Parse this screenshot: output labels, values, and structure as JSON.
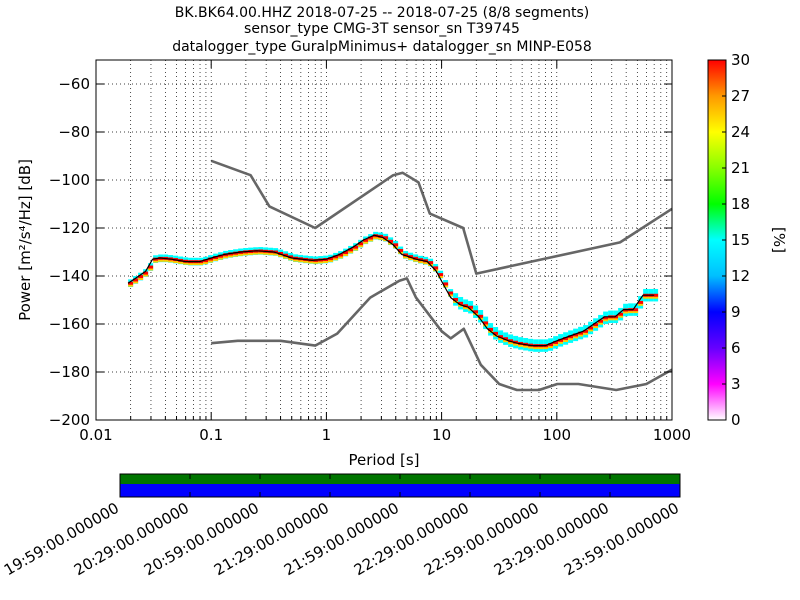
{
  "title_lines": [
    "BK.BK64.00.HHZ   2018-07-25 -- 2018-07-25  (8/8 segments)",
    "sensor_type CMG-3T sensor_sn T39745",
    "datalogger_type GuralpMinimus+ datalogger_sn MINP-E058"
  ],
  "chart_data": {
    "type": "heatmap",
    "xlabel": "Period [s]",
    "ylabel": "Power [m²/s⁴/Hz] [dB]",
    "x_scale": "log",
    "xlim": [
      0.01,
      1000
    ],
    "ylim": [
      -200,
      -50
    ],
    "x_ticks": [
      0.01,
      0.1,
      1,
      10,
      100,
      1000
    ],
    "x_tick_labels": [
      "0.01",
      "0.1",
      "1",
      "10",
      "100",
      "1000"
    ],
    "y_ticks": [
      -200,
      -180,
      -160,
      -140,
      -120,
      -100,
      -80,
      -60
    ],
    "y_tick_labels": [
      "−200",
      "−180",
      "−160",
      "−140",
      "−120",
      "−100",
      "−80",
      "−60"
    ],
    "grid": "dotted, at log subdivisions",
    "colorbar": {
      "label": "[%]",
      "range": [
        0,
        30
      ],
      "ticks": [
        "0",
        "3",
        "6",
        "9",
        "12",
        "15",
        "18",
        "21",
        "24",
        "27",
        "30"
      ]
    },
    "series": [
      {
        "role": "mode",
        "color": "#000000",
        "points": [
          [
            0.019,
            -143
          ],
          [
            0.022,
            -141
          ],
          [
            0.027,
            -138
          ],
          [
            0.031,
            -133
          ],
          [
            0.036,
            -132.5
          ],
          [
            0.045,
            -133
          ],
          [
            0.06,
            -134
          ],
          [
            0.08,
            -134
          ],
          [
            0.1,
            -132.5
          ],
          [
            0.13,
            -131
          ],
          [
            0.18,
            -130
          ],
          [
            0.25,
            -129.5
          ],
          [
            0.35,
            -130
          ],
          [
            0.5,
            -132.5
          ],
          [
            0.75,
            -133.5
          ],
          [
            1.0,
            -133
          ],
          [
            1.3,
            -131
          ],
          [
            1.7,
            -128
          ],
          [
            2.1,
            -125
          ],
          [
            2.6,
            -123
          ],
          [
            3.1,
            -124
          ],
          [
            3.8,
            -127
          ],
          [
            4.5,
            -131
          ],
          [
            6,
            -133
          ],
          [
            7.5,
            -134
          ],
          [
            9,
            -138
          ],
          [
            10.5,
            -144
          ],
          [
            12,
            -149
          ],
          [
            14.5,
            -152
          ],
          [
            17,
            -153
          ],
          [
            21,
            -157
          ],
          [
            25,
            -162
          ],
          [
            30,
            -165
          ],
          [
            38,
            -167
          ],
          [
            45,
            -168
          ],
          [
            60,
            -169
          ],
          [
            80,
            -169
          ],
          [
            100,
            -167
          ],
          [
            130,
            -165
          ],
          [
            170,
            -163
          ],
          [
            210,
            -160
          ],
          [
            260,
            -157
          ],
          [
            320,
            -157
          ],
          [
            380,
            -154
          ],
          [
            460,
            -154
          ],
          [
            560,
            -148
          ],
          [
            700,
            -148
          ]
        ]
      },
      {
        "role": "NHNM",
        "color": "#666666",
        "points": [
          [
            0.1,
            -92
          ],
          [
            0.22,
            -98
          ],
          [
            0.32,
            -111
          ],
          [
            0.8,
            -120
          ],
          [
            3.8,
            -98
          ],
          [
            4.6,
            -97
          ],
          [
            6.3,
            -101
          ],
          [
            7.9,
            -114
          ],
          [
            15.4,
            -120
          ],
          [
            20,
            -139
          ],
          [
            354,
            -126
          ],
          [
            1000,
            -112
          ]
        ]
      },
      {
        "role": "NLNM",
        "color": "#666666",
        "points": [
          [
            0.1,
            -168
          ],
          [
            0.17,
            -167
          ],
          [
            0.4,
            -167
          ],
          [
            0.8,
            -169
          ],
          [
            1.24,
            -164
          ],
          [
            2.4,
            -149
          ],
          [
            4.3,
            -142
          ],
          [
            5,
            -141
          ],
          [
            6,
            -149
          ],
          [
            10,
            -163
          ],
          [
            12,
            -166
          ],
          [
            15.6,
            -162
          ],
          [
            21.9,
            -177
          ],
          [
            31.6,
            -185
          ],
          [
            45,
            -187.5
          ],
          [
            70,
            -187.5
          ],
          [
            101,
            -185
          ],
          [
            154,
            -185
          ],
          [
            328,
            -187.5
          ],
          [
            600,
            -185
          ],
          [
            1000,
            -179
          ]
        ]
      }
    ]
  },
  "timeline": {
    "segments": 8,
    "labels": [
      "19:59:00.000000",
      "20:29:00.000000",
      "20:59:00.000000",
      "21:29:00.000000",
      "21:59:00.000000",
      "22:29:00.000000",
      "22:59:00.000000",
      "23:29:00.000000",
      "23:59:00.000000"
    ],
    "top_band_color": "#007500",
    "bottom_band_color": "#0000ff"
  },
  "colors": {
    "mode": "#000000",
    "noise_models": "#666666"
  }
}
